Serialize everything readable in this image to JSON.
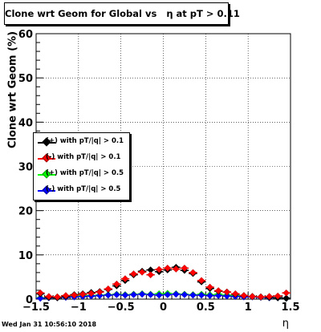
{
  "chart_data": {
    "type": "scatter",
    "title": "Clone wrt Geom for Global vs   η at pT > 0.11",
    "xlabel": "η",
    "ylabel": "Clone wrt Geom (%)",
    "xlim": [
      -1.5,
      1.5
    ],
    "ylim": [
      0,
      60
    ],
    "grid": true,
    "legend_position": "left",
    "x_ticks": [
      "−1.5",
      "−1",
      "−0.5",
      "0",
      "0.5",
      "1",
      "1.5"
    ],
    "y_ticks": [
      "0",
      "10",
      "20",
      "30",
      "40",
      "50",
      "60"
    ],
    "series": [
      {
        "name": "(+) with pT/|q| > 0.1",
        "color": "#000000",
        "x": [
          -1.45,
          -1.35,
          -1.25,
          -1.15,
          -1.05,
          -0.95,
          -0.85,
          -0.75,
          -0.65,
          -0.55,
          -0.45,
          -0.35,
          -0.25,
          -0.15,
          -0.05,
          0.05,
          0.15,
          0.25,
          0.35,
          0.45,
          0.55,
          0.65,
          0.75,
          0.85,
          0.95,
          1.05,
          1.15,
          1.25,
          1.35,
          1.45
        ],
        "values": [
          1.2,
          0.4,
          0.3,
          0.6,
          1.0,
          1.2,
          1.5,
          1.7,
          2.2,
          3.0,
          4.2,
          5.5,
          6.3,
          6.6,
          6.2,
          6.6,
          7.2,
          6.5,
          5.8,
          3.9,
          2.4,
          1.8,
          1.6,
          1.1,
          0.8,
          0.6,
          0.5,
          0.4,
          0.3,
          0.2
        ]
      },
      {
        "name": "(-) with pT/|q| > 0.1",
        "color": "#ff0000",
        "x": [
          -1.45,
          -1.35,
          -1.25,
          -1.15,
          -1.05,
          -0.95,
          -0.85,
          -0.75,
          -0.65,
          -0.55,
          -0.45,
          -0.35,
          -0.25,
          -0.15,
          -0.05,
          0.05,
          0.15,
          0.25,
          0.35,
          0.45,
          0.55,
          0.65,
          0.75,
          0.85,
          0.95,
          1.05,
          1.15,
          1.25,
          1.35,
          1.45
        ],
        "values": [
          1.4,
          0.6,
          0.5,
          0.8,
          0.9,
          1.1,
          1.3,
          1.6,
          2.3,
          3.4,
          4.6,
          5.7,
          6.1,
          5.5,
          6.7,
          7.0,
          6.8,
          7.0,
          6.0,
          4.2,
          2.7,
          1.9,
          1.6,
          1.2,
          0.8,
          0.6,
          0.5,
          0.6,
          0.7,
          1.4
        ]
      },
      {
        "name": "(+) with pT/|q| > 0.5",
        "color": "#00ff00",
        "x": [
          -1.45,
          -1.35,
          -1.25,
          -1.15,
          -1.05,
          -0.95,
          -0.85,
          -0.75,
          -0.65,
          -0.55,
          -0.45,
          -0.35,
          -0.25,
          -0.15,
          -0.05,
          0.05,
          0.15,
          0.25,
          0.35,
          0.45,
          0.55,
          0.65,
          0.75,
          0.85,
          0.95,
          1.05,
          1.15,
          1.25,
          1.35,
          1.45
        ],
        "values": [
          0.3,
          0.4,
          0.5,
          0.7,
          0.8,
          0.9,
          0.8,
          0.9,
          1.0,
          1.1,
          1.0,
          1.1,
          1.2,
          1.1,
          1.2,
          1.3,
          1.2,
          1.1,
          1.0,
          1.1,
          1.0,
          1.1,
          0.9,
          0.8,
          0.7,
          0.6,
          0.5,
          0.4,
          0.3,
          0.2
        ]
      },
      {
        "name": "(-) with pT/|q| > 0.5",
        "color": "#0000ff",
        "x": [
          -1.45,
          -1.35,
          -1.25,
          -1.15,
          -1.05,
          -0.95,
          -0.85,
          -0.75,
          -0.65,
          -0.55,
          -0.45,
          -0.35,
          -0.25,
          -0.15,
          -0.05,
          0.05,
          0.15,
          0.25,
          0.35,
          0.45,
          0.55,
          0.65,
          0.75,
          0.85,
          0.95,
          1.05,
          1.15,
          1.25,
          1.35,
          1.45
        ],
        "values": [
          0.2,
          0.3,
          0.3,
          0.4,
          0.5,
          0.6,
          0.7,
          0.8,
          0.9,
          1.0,
          0.9,
          1.0,
          1.1,
          1.0,
          0.9,
          1.0,
          1.1,
          1.0,
          0.9,
          0.9,
          0.8,
          0.8,
          0.7,
          0.6,
          0.5,
          0.5,
          0.4,
          0.3,
          0.3,
          0.2
        ]
      }
    ]
  },
  "footer": {
    "timestamp": "Wed Jan 31 10:56:10 2018"
  }
}
